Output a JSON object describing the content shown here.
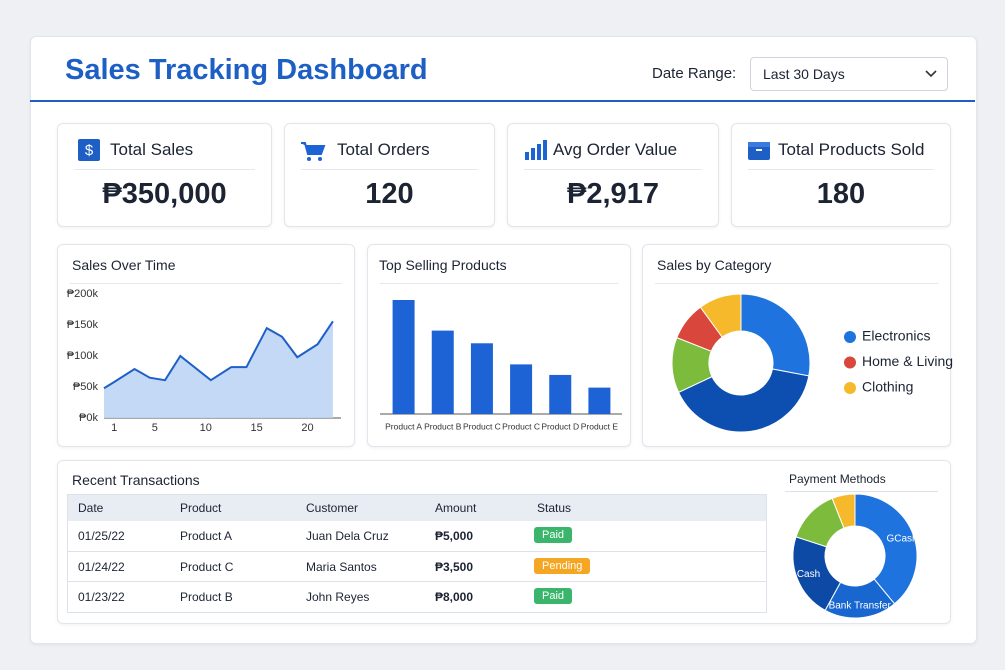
{
  "header": {
    "title": "Sales Tracking Dashboard",
    "date_range_label": "Date Range:",
    "date_range_value": "Last 30 Days"
  },
  "kpis": [
    {
      "label": "Total Sales",
      "value": "₱350,000"
    },
    {
      "label": "Total Orders",
      "value": "120"
    },
    {
      "label": "Avg Order Value",
      "value": "₱2,917"
    },
    {
      "label": "Total Products Sold",
      "value": "180"
    }
  ],
  "chart_data": [
    {
      "type": "line",
      "title": "Sales Over Time",
      "color": "#1f5fc8",
      "fill": "#bcd5f5",
      "x": [
        0,
        1,
        3,
        4.5,
        6,
        7.5,
        10.5,
        12.5,
        14,
        16,
        17.5,
        19,
        21,
        22.5
      ],
      "values": [
        48,
        58,
        79,
        65,
        61,
        100,
        61,
        82,
        82,
        145,
        131,
        98,
        119,
        156
      ],
      "xlim": [
        0,
        23
      ],
      "xticks": [
        1,
        5,
        10,
        15,
        20
      ],
      "ylim": [
        0,
        200
      ],
      "yticks": [
        {
          "value": 0,
          "label": "₱0k"
        },
        {
          "value": 50,
          "label": "₱50k"
        },
        {
          "value": 100,
          "label": "₱100k"
        },
        {
          "value": 150,
          "label": "₱150k"
        },
        {
          "value": 200,
          "label": "₱200k"
        }
      ]
    },
    {
      "type": "bar",
      "title": "Top Selling Products",
      "color": "#1d63d6",
      "categories": [
        "Product A",
        "Product B",
        "Product C",
        "Product C",
        "Product D",
        "Product E"
      ],
      "values": [
        108,
        79,
        67,
        47,
        37,
        25
      ]
    },
    {
      "type": "donut",
      "title": "Sales by Category",
      "categories": [
        "Electronics",
        null,
        null,
        "Home & Living",
        "Clothing"
      ],
      "values": [
        28,
        40,
        13,
        9,
        10
      ],
      "colors": [
        "#1e73de",
        "#0d4fb0",
        "#7dbb3c",
        "#d9463b",
        "#f6b92b"
      ],
      "legend": "right"
    },
    {
      "type": "donut",
      "title": "Payment Methods",
      "categories": [
        "GCash",
        "Bank Transfer",
        "Cash",
        null,
        null
      ],
      "values": [
        39,
        19,
        22,
        14,
        6
      ],
      "colors": [
        "#1e73de",
        "#1866cf",
        "#0d4aa6",
        "#7dbb3c",
        "#f6b92b"
      ],
      "labels_inside": true
    }
  ],
  "transactions": {
    "title": "Recent Transactions",
    "columns": [
      "Date",
      "Product",
      "Customer",
      "Amount",
      "Status"
    ],
    "rows": [
      [
        "01/25/22",
        "Product A",
        "Juan Dela Cruz",
        "₱5,000",
        "Paid"
      ],
      [
        "01/24/22",
        "Product C",
        "Maria Santos",
        "₱3,500",
        "Pending"
      ],
      [
        "01/23/22",
        "Product B",
        "John Reyes",
        "₱8,000",
        "Paid"
      ]
    ]
  }
}
